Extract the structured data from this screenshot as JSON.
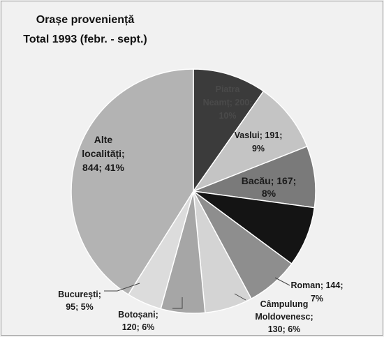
{
  "chart_data": {
    "type": "pie",
    "title": "Orașe proveniență",
    "subtitle": "Total 1993 (febr. - sept.)",
    "series": [
      {
        "label_lines": [
          "Piatra",
          "Neamț; 200;",
          "10%"
        ],
        "value": 200,
        "percent": 10,
        "color": "#3b3b3b"
      },
      {
        "label_lines": [
          "Vaslui; 191;",
          "9%"
        ],
        "value": 191,
        "percent": 9,
        "color": "#c4c4c4"
      },
      {
        "label_lines": [
          "Bacău; 167;",
          "8%"
        ],
        "value": 167,
        "percent": 8,
        "color": "#7a7a7a"
      },
      {
        "label_lines": [
          "",
          ""
        ],
        "value": 164,
        "percent": 8,
        "color": "#141414"
      },
      {
        "label_lines": [
          "Roman; 144;",
          "7%"
        ],
        "value": 144,
        "percent": 7,
        "color": "#8e8e8e"
      },
      {
        "label_lines": [
          "Câmpulung",
          "Moldovenesc;",
          "130; 6%"
        ],
        "value": 130,
        "percent": 6,
        "color": "#d4d4d4"
      },
      {
        "label_lines": [
          "Botoșani;",
          "120; 6%"
        ],
        "value": 120,
        "percent": 6,
        "color": "#a6a6a6"
      },
      {
        "label_lines": [
          "București;",
          "95; 5%"
        ],
        "value": 95,
        "percent": 5,
        "color": "#dcdcdc"
      },
      {
        "label_lines": [
          "Alte",
          "localități;",
          "844; 41%"
        ],
        "value": 844,
        "percent": 41,
        "color": "#b3b3b3"
      }
    ]
  }
}
